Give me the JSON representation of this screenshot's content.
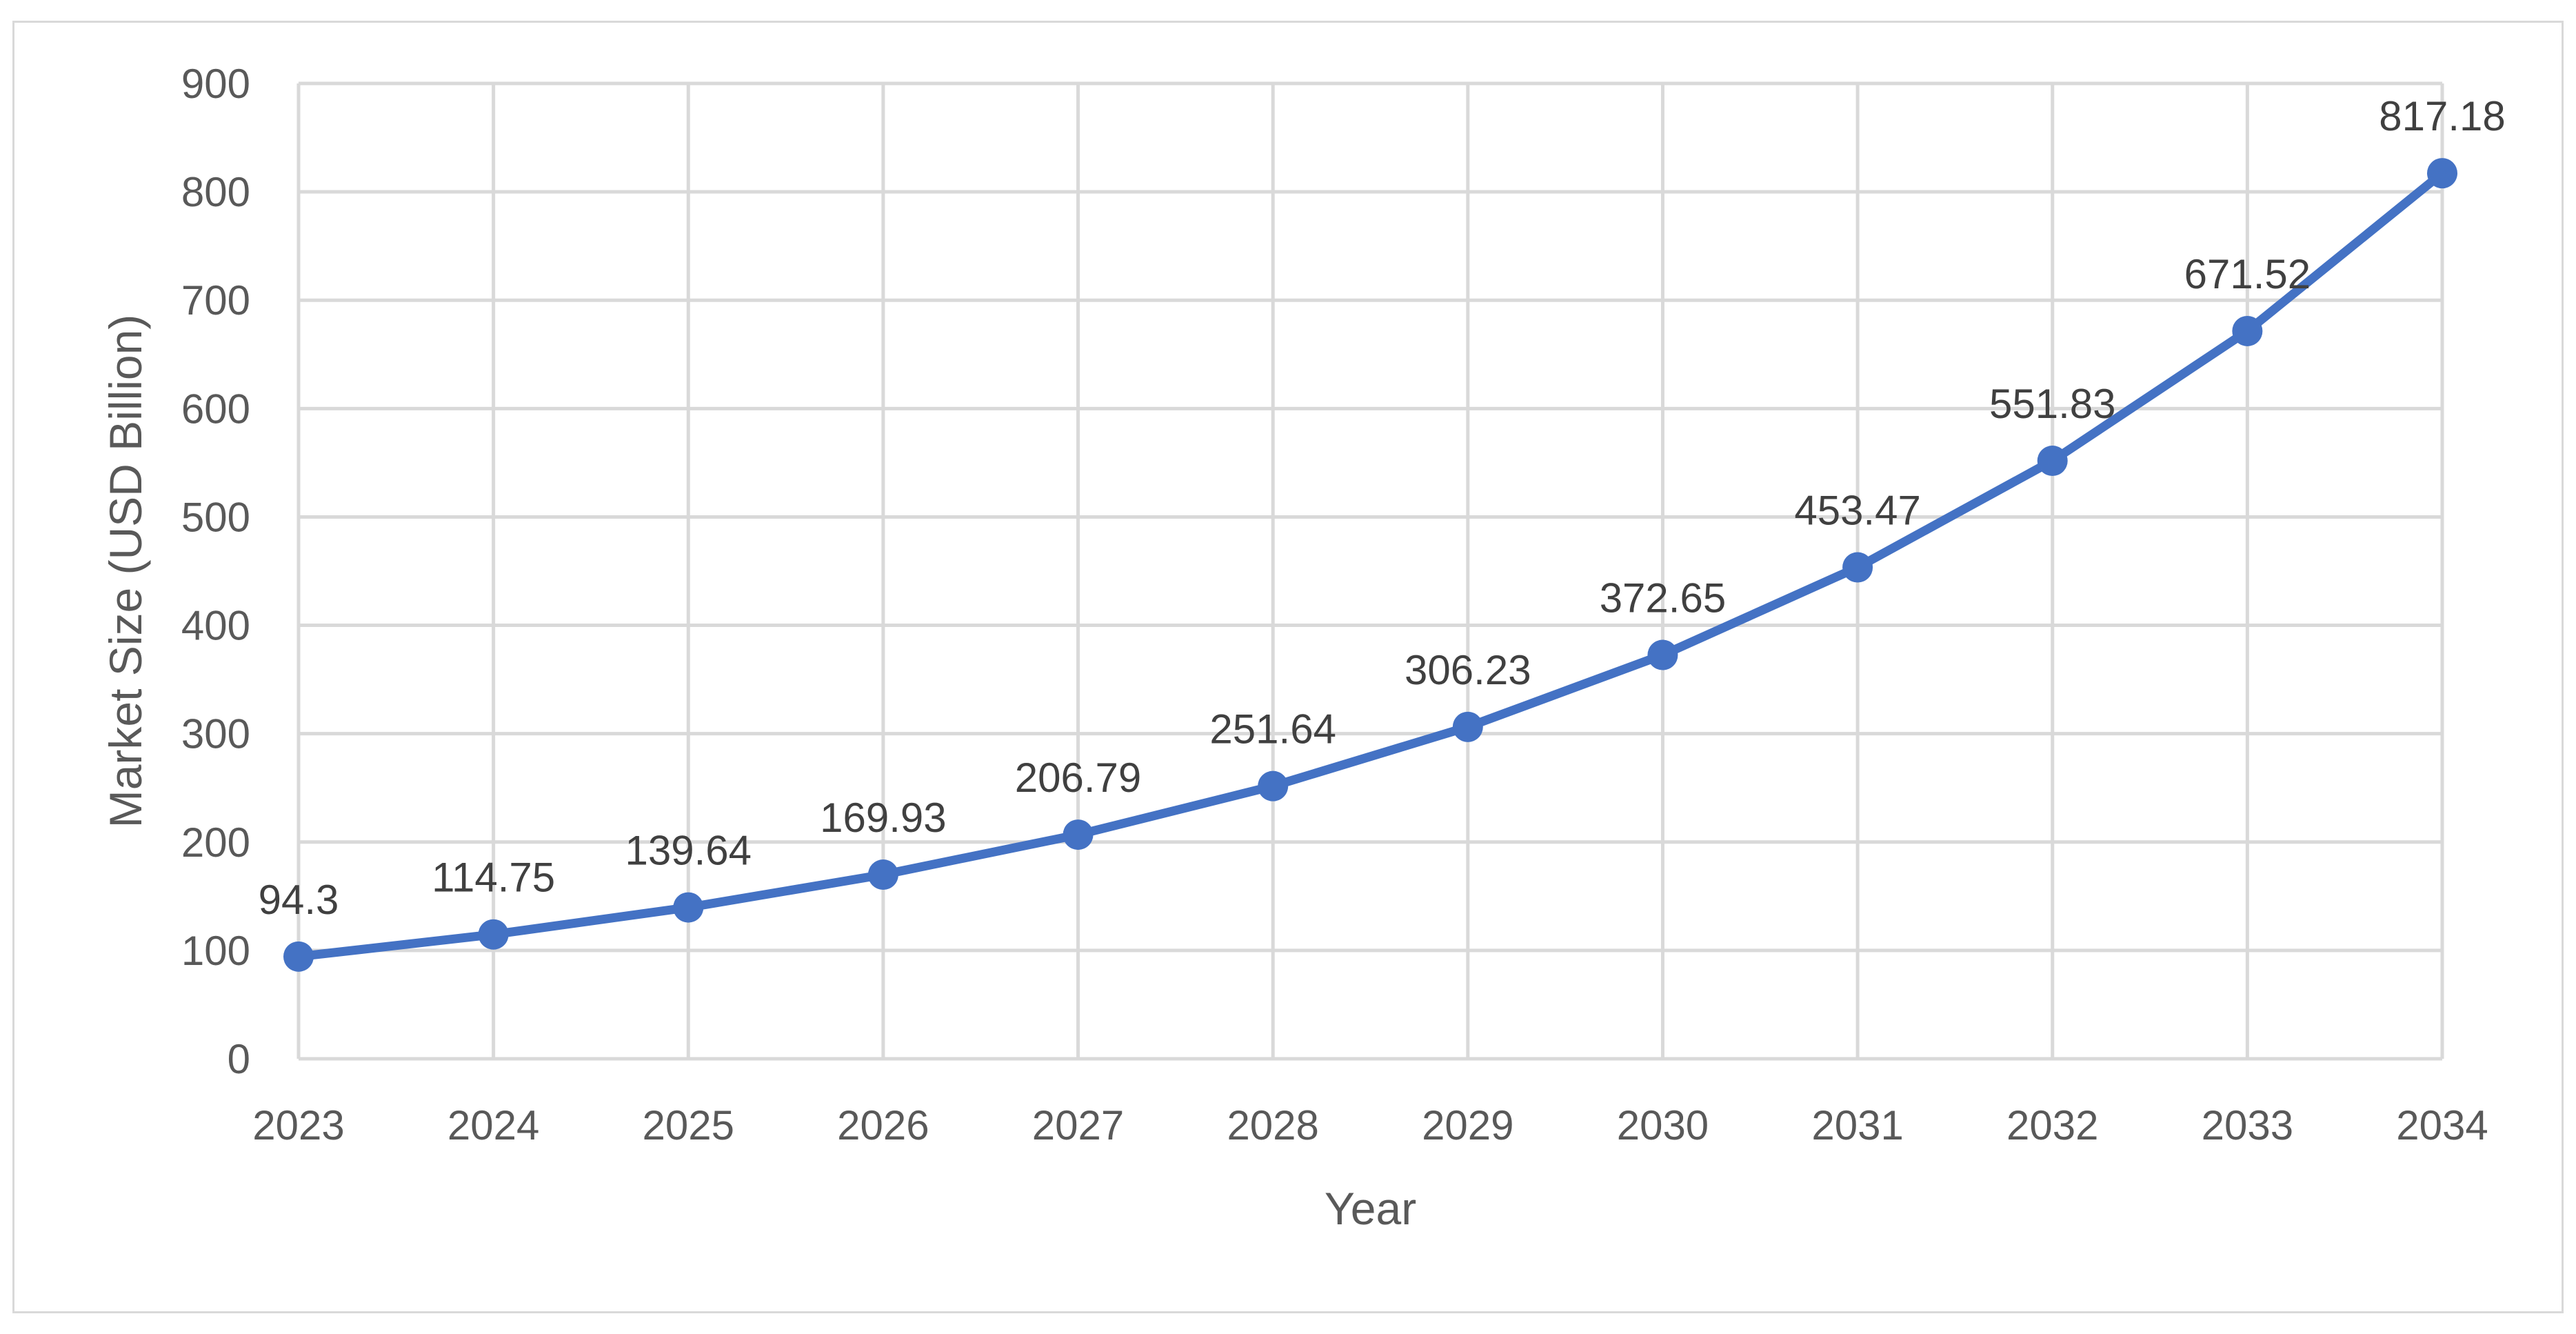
{
  "chart_data": {
    "type": "line",
    "title": "",
    "xlabel": "Year",
    "ylabel": "Market Size (USD Billion)",
    "ylim": [
      0,
      900
    ],
    "yticks": [
      0,
      100,
      200,
      300,
      400,
      500,
      600,
      700,
      800,
      900
    ],
    "grid": true,
    "legend": "none",
    "categories": [
      "2023",
      "2024",
      "2025",
      "2026",
      "2027",
      "2028",
      "2029",
      "2030",
      "2031",
      "2032",
      "2033",
      "2034"
    ],
    "series": [
      {
        "color": "#4472c4",
        "values": [
          94.3,
          114.75,
          139.64,
          169.93,
          206.79,
          251.64,
          306.23,
          372.65,
          453.47,
          551.83,
          671.52,
          817.18
        ],
        "labels": [
          "94.3",
          "114.75",
          "139.64",
          "169.93",
          "206.79",
          "251.64",
          "306.23",
          "372.65",
          "453.47",
          "551.83",
          "671.52",
          "817.18"
        ]
      }
    ]
  }
}
